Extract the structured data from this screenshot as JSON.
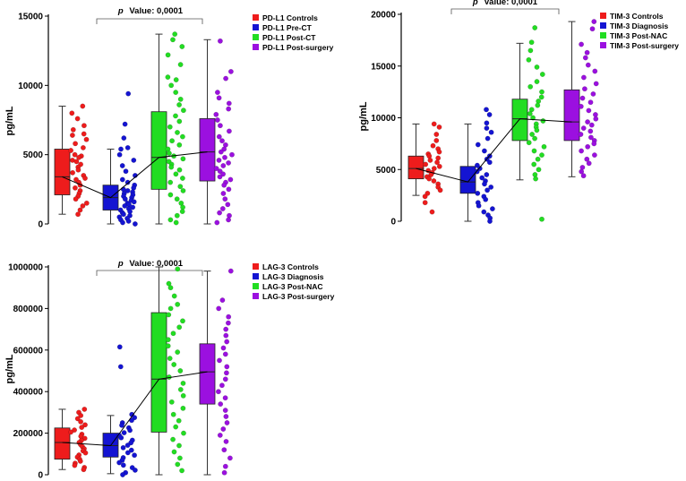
{
  "chart_data": [
    {
      "type": "box",
      "id": "pdl1",
      "title": "",
      "xlabel": "",
      "ylabel": "pg/mL",
      "ylim": [
        0,
        15000
      ],
      "yticks": [
        0,
        5000,
        10000,
        15000
      ],
      "yticklabels": [
        "0",
        "5000",
        "10000",
        "15000"
      ],
      "pvalue": {
        "prefix": "p",
        "text": "Value: 0,0001"
      },
      "legend_position": "top-right",
      "series": [
        {
          "name": "PD-L1 Controls",
          "color": "#ee1c1c",
          "min": 700,
          "q1": 2100,
          "median": 3400,
          "q3": 5400,
          "max": 8500,
          "points": [
            8500,
            8000,
            7600,
            7100,
            6800,
            6500,
            6400,
            6100,
            5800,
            5500,
            5300,
            5000,
            4900,
            4800,
            4600,
            4500,
            4300,
            4100,
            3900,
            3700,
            3500,
            3300,
            3200,
            3000,
            2800,
            2600,
            2400,
            2200,
            2000,
            1800,
            1500,
            1300,
            1000,
            700
          ]
        },
        {
          "name": "PD-L1 Pre-CT",
          "color": "#1414d2",
          "min": 0,
          "q1": 1000,
          "median": 1900,
          "q3": 2800,
          "max": 5400,
          "points": [
            9400,
            7200,
            6200,
            5500,
            5400,
            5000,
            4600,
            4200,
            3800,
            3500,
            3200,
            3000,
            2800,
            2600,
            2500,
            2400,
            2300,
            2200,
            2100,
            2000,
            1900,
            1800,
            1700,
            1600,
            1500,
            1400,
            1300,
            1200,
            1100,
            1000,
            900,
            800,
            700,
            600,
            500,
            400,
            300,
            200,
            100,
            0
          ]
        },
        {
          "name": "PD-L1 Post-CT",
          "color": "#22dd22",
          "min": 0,
          "q1": 2500,
          "median": 4800,
          "q3": 8100,
          "max": 13700,
          "points": [
            13700,
            13300,
            12800,
            12200,
            11500,
            10600,
            10400,
            10000,
            9500,
            9000,
            8600,
            8200,
            7800,
            7400,
            7000,
            6600,
            6300,
            6000,
            5700,
            5400,
            5100,
            4900,
            4700,
            4500,
            4300,
            4100,
            3900,
            3600,
            3300,
            3000,
            2700,
            2400,
            2100,
            1800,
            1500,
            1200,
            900,
            600,
            300,
            100
          ]
        },
        {
          "name": "PD-L1 Post-surgery",
          "color": "#9b10e0",
          "min": 0,
          "q1": 3100,
          "median": 5200,
          "q3": 7600,
          "max": 13300,
          "points": [
            13200,
            11000,
            10500,
            9500,
            9100,
            8700,
            8300,
            7900,
            7500,
            7100,
            6700,
            6300,
            6000,
            5700,
            5400,
            5200,
            5000,
            4800,
            4600,
            4400,
            4200,
            4000,
            3800,
            3600,
            3400,
            3200,
            3000,
            2800,
            2500,
            2200,
            1800,
            1400,
            1100,
            800,
            600,
            300,
            100
          ]
        }
      ]
    },
    {
      "type": "box",
      "id": "tim3",
      "title": "",
      "xlabel": "",
      "ylabel": "pg/mL",
      "ylim": [
        0,
        20000
      ],
      "yticks": [
        0,
        5000,
        10000,
        15000,
        20000
      ],
      "yticklabels": [
        "0",
        "5000",
        "10000",
        "15000",
        "20000"
      ],
      "pvalue": {
        "prefix": "p",
        "text": "Value: 0,0001"
      },
      "legend_position": "top-right",
      "series": [
        {
          "name": "TIM-3 Controls",
          "color": "#ee1c1c",
          "min": 2500,
          "q1": 4100,
          "median": 5100,
          "q3": 6300,
          "max": 9400,
          "points": [
            9400,
            9100,
            8400,
            7800,
            7300,
            7000,
            6700,
            6500,
            6300,
            6100,
            5900,
            5700,
            5500,
            5300,
            5100,
            4900,
            4700,
            4500,
            4300,
            4100,
            3900,
            3600,
            3300,
            3000,
            2700,
            2400,
            1800,
            900
          ]
        },
        {
          "name": "TIM-3 Diagnosis",
          "color": "#1414d2",
          "min": 0,
          "q1": 2700,
          "median": 3800,
          "q3": 5300,
          "max": 9400,
          "points": [
            10800,
            10300,
            9500,
            9000,
            8600,
            8000,
            7400,
            6800,
            6300,
            6000,
            5700,
            5400,
            5100,
            4800,
            4500,
            4200,
            3900,
            3600,
            3300,
            3000,
            2700,
            2400,
            2100,
            1800,
            1500,
            1200,
            900,
            600,
            300,
            0
          ]
        },
        {
          "name": "TIM-3 Post-NAC",
          "color": "#22dd22",
          "min": 4000,
          "q1": 7800,
          "median": 9900,
          "q3": 11800,
          "max": 17200,
          "points": [
            18700,
            17300,
            16500,
            15600,
            14900,
            14200,
            13500,
            13000,
            12500,
            12000,
            11600,
            11200,
            10800,
            10400,
            10000,
            9700,
            9400,
            9100,
            8800,
            8400,
            8000,
            7600,
            7200,
            6800,
            6400,
            6000,
            5500,
            5000,
            4500,
            4100,
            200
          ]
        },
        {
          "name": "TIM-3 Post-surgery",
          "color": "#9b10e0",
          "min": 4300,
          "q1": 7800,
          "median": 9600,
          "q3": 12700,
          "max": 19300,
          "points": [
            19300,
            18600,
            17100,
            16300,
            15800,
            15100,
            14500,
            13900,
            13300,
            12800,
            12300,
            11900,
            11500,
            11100,
            10700,
            10300,
            9900,
            9600,
            9300,
            9000,
            8700,
            8400,
            8100,
            7800,
            7500,
            7200,
            6800,
            6400,
            6000,
            5600,
            5200,
            4800,
            4400
          ]
        }
      ]
    },
    {
      "type": "box",
      "id": "lag3",
      "title": "",
      "xlabel": "",
      "ylabel": "pg/mL",
      "ylim": [
        0,
        1000000
      ],
      "yticks": [
        0,
        200000,
        400000,
        600000,
        800000,
        1000000
      ],
      "yticklabels": [
        "0",
        "200000",
        "400000",
        "600000",
        "800000",
        "1000000"
      ],
      "pvalue": {
        "prefix": "p",
        "text": "Value: 0,0001"
      },
      "legend_position": "top-right",
      "series": [
        {
          "name": "LAG-3 Controls",
          "color": "#ee1c1c",
          "min": 25000,
          "q1": 75000,
          "median": 155000,
          "q3": 225000,
          "max": 315000,
          "points": [
            315000,
            300000,
            285000,
            270000,
            255000,
            240000,
            228000,
            215000,
            205000,
            195000,
            185000,
            175000,
            165000,
            155000,
            145000,
            135000,
            125000,
            115000,
            105000,
            95000,
            85000,
            75000,
            65000,
            55000,
            45000,
            35000,
            25000
          ]
        },
        {
          "name": "LAG-3 Diagnosis",
          "color": "#1414d2",
          "min": 5000,
          "q1": 85000,
          "median": 140000,
          "q3": 200000,
          "max": 285000,
          "points": [
            615000,
            520000,
            290000,
            275000,
            262000,
            250000,
            238000,
            226000,
            214000,
            202000,
            190000,
            178000,
            166000,
            154000,
            142000,
            130000,
            118000,
            106000,
            94000,
            82000,
            70000,
            58000,
            46000,
            34000,
            22000,
            10000,
            0
          ]
        },
        {
          "name": "LAG-3 Post-NAC",
          "color": "#22dd22",
          "min": 0,
          "q1": 205000,
          "median": 460000,
          "q3": 780000,
          "max": 1000000,
          "points": [
            990000,
            920000,
            900000,
            860000,
            820000,
            800000,
            770000,
            740000,
            710000,
            680000,
            650000,
            620000,
            590000,
            560000,
            530000,
            500000,
            470000,
            440000,
            410000,
            380000,
            350000,
            320000,
            290000,
            260000,
            230000,
            200000,
            170000,
            140000,
            110000,
            80000,
            50000,
            20000
          ]
        },
        {
          "name": "LAG-3 Post-surgery",
          "color": "#9b10e0",
          "min": 0,
          "q1": 340000,
          "median": 495000,
          "q3": 630000,
          "max": 980000,
          "points": [
            980000,
            840000,
            800000,
            760000,
            730000,
            700000,
            670000,
            640000,
            610000,
            580000,
            550000,
            520000,
            490000,
            460000,
            430000,
            400000,
            370000,
            340000,
            310000,
            280000,
            250000,
            220000,
            190000,
            160000,
            120000,
            80000,
            40000,
            10000
          ]
        }
      ]
    }
  ]
}
